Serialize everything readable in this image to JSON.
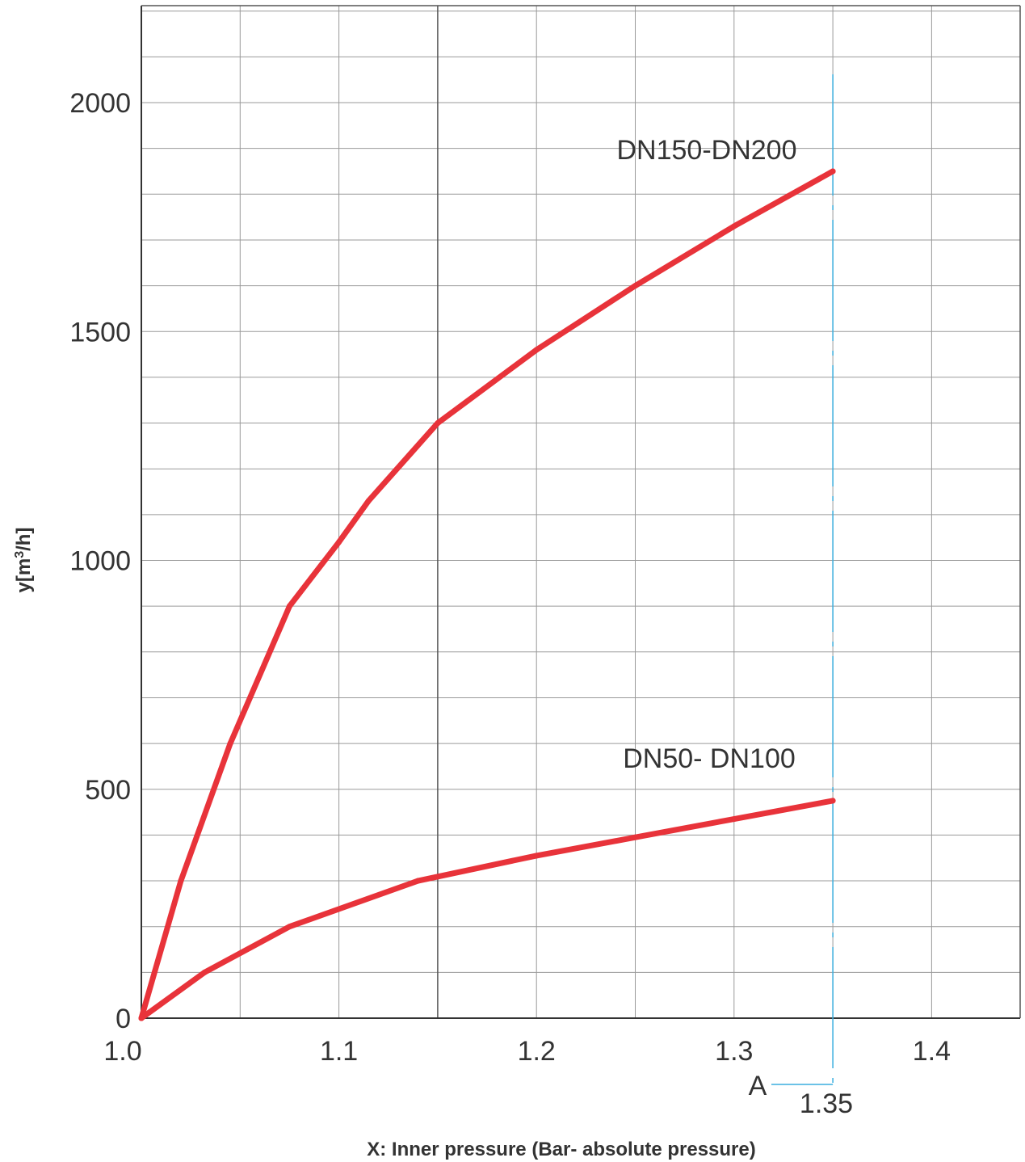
{
  "chart_data": {
    "type": "line",
    "xlabel": "X: Inner pressure (Bar- absolute pressure)",
    "ylabel_main": "y[m",
    "ylabel_sup": "3",
    "ylabel_end": "/h]",
    "xlim": [
      1.0,
      1.45
    ],
    "ylim": [
      0,
      2200
    ],
    "grid": true,
    "x_ticks": [
      {
        "value": 1.0,
        "label": "1.0"
      },
      {
        "value": 1.1,
        "label": "1.1"
      },
      {
        "value": 1.2,
        "label": "1.2"
      },
      {
        "value": 1.3,
        "label": "1.3"
      },
      {
        "value": 1.4,
        "label": "1.4"
      }
    ],
    "y_ticks": [
      {
        "value": 0,
        "label": "0"
      },
      {
        "value": 500,
        "label": "500"
      },
      {
        "value": 1000,
        "label": "1000"
      },
      {
        "value": 1500,
        "label": "1500"
      },
      {
        "value": 2000,
        "label": "2000"
      }
    ],
    "x_minor_grid": [
      1.05,
      1.15,
      1.25,
      1.35,
      1.45
    ],
    "y_minor_grid_step": 100,
    "series": [
      {
        "name": "DN150-DN200",
        "color": "#e8333a",
        "x": [
          1.0,
          1.02,
          1.045,
          1.075,
          1.1,
          1.115,
          1.15,
          1.2,
          1.25,
          1.3,
          1.35
        ],
        "y": [
          0,
          300,
          600,
          900,
          1040,
          1130,
          1300,
          1460,
          1600,
          1730,
          1850
        ]
      },
      {
        "name": "DN50- DN100",
        "color": "#e8333a",
        "x": [
          1.0,
          1.032,
          1.075,
          1.14,
          1.2,
          1.25,
          1.3,
          1.35
        ],
        "y": [
          0,
          100,
          200,
          300,
          355,
          395,
          435,
          475
        ]
      }
    ],
    "reference_line": {
      "x": 1.35,
      "color": "#3aaedf",
      "label": "A",
      "value_label": "1.35"
    }
  }
}
